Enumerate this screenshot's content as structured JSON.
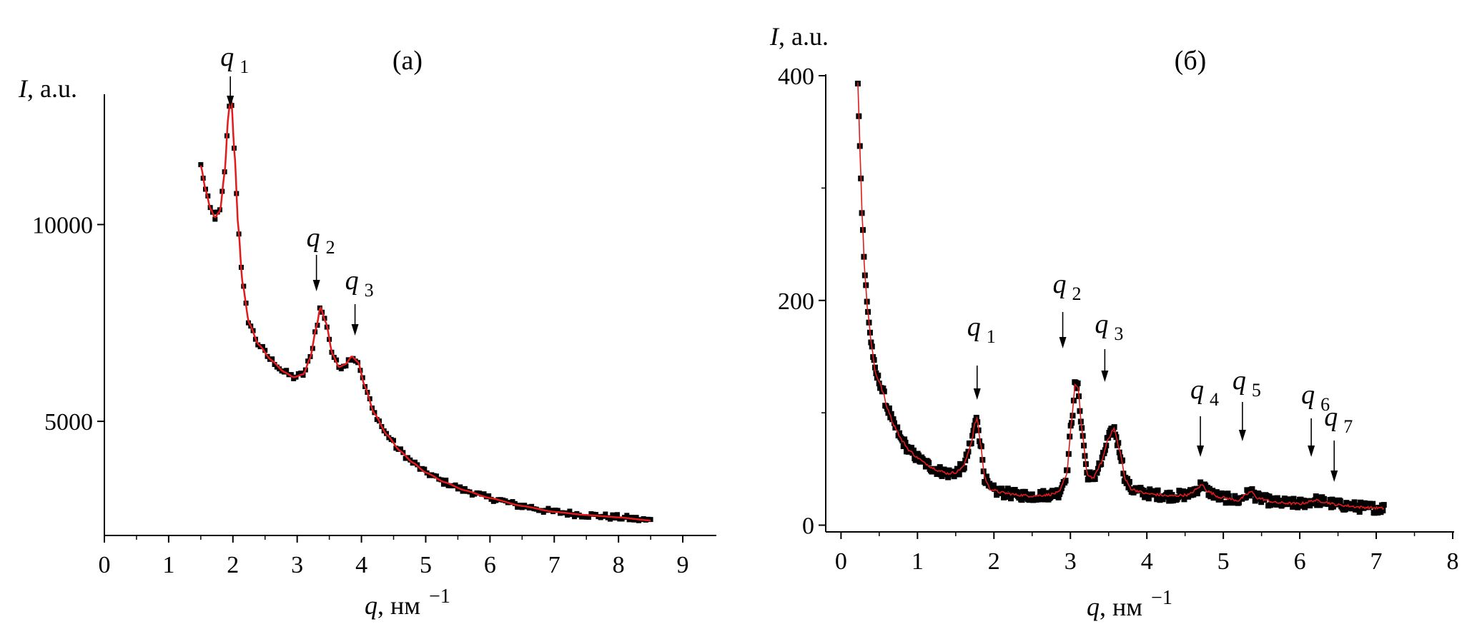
{
  "colors": {
    "fit_line": "#e31a1c",
    "points": "#000000",
    "axes": "#000000"
  },
  "chart_data": [
    {
      "type": "scatter",
      "panel_label": "(a)",
      "xlabel_var": "q",
      "xlabel_unit": ", нм",
      "xlabel_sup": "−1",
      "ylabel_var": "I",
      "ylabel_unit": ", a.u.",
      "xlim": [
        0,
        9.5
      ],
      "ylim": [
        2100,
        14000
      ],
      "xticks": [
        0,
        1,
        2,
        3,
        4,
        5,
        6,
        7,
        8,
        9
      ],
      "yticks": [
        5000,
        10000
      ],
      "grid": false,
      "legend": "none",
      "series": [
        {
          "kind": "points+fit",
          "anchors": [
            [
              1.5,
              11500
            ],
            [
              1.58,
              10850
            ],
            [
              1.65,
              10400
            ],
            [
              1.72,
              10180
            ],
            [
              1.8,
              10350
            ],
            [
              1.87,
              11300
            ],
            [
              1.93,
              12800
            ],
            [
              1.97,
              13300
            ],
            [
              2.03,
              11700
            ],
            [
              2.08,
              10000
            ],
            [
              2.15,
              8500
            ],
            [
              2.25,
              7500
            ],
            [
              2.4,
              6950
            ],
            [
              2.6,
              6550
            ],
            [
              2.8,
              6250
            ],
            [
              2.95,
              6120
            ],
            [
              3.1,
              6200
            ],
            [
              3.2,
              6600
            ],
            [
              3.3,
              7400
            ],
            [
              3.36,
              7900
            ],
            [
              3.45,
              7500
            ],
            [
              3.55,
              6700
            ],
            [
              3.65,
              6380
            ],
            [
              3.75,
              6450
            ],
            [
              3.85,
              6650
            ],
            [
              3.95,
              6500
            ],
            [
              4.05,
              5900
            ],
            [
              4.2,
              5200
            ],
            [
              4.4,
              4650
            ],
            [
              4.6,
              4250
            ],
            [
              4.8,
              3950
            ],
            [
              5.0,
              3700
            ],
            [
              5.3,
              3450
            ],
            [
              5.6,
              3250
            ],
            [
              6.0,
              3050
            ],
            [
              6.5,
              2850
            ],
            [
              7.0,
              2700
            ],
            [
              7.5,
              2620
            ],
            [
              8.0,
              2560
            ],
            [
              8.5,
              2480
            ]
          ]
        }
      ],
      "annotations": [
        {
          "base": "q",
          "sub": "1",
          "x": 1.96
        },
        {
          "base": "q",
          "sub": "2",
          "x": 3.3
        },
        {
          "base": "q",
          "sub": "3",
          "x": 3.9
        }
      ]
    },
    {
      "type": "scatter",
      "panel_label": "(б)",
      "xlabel_var": "q",
      "xlabel_unit": ", нм",
      "xlabel_sup": "−1",
      "ylabel_var": "I",
      "ylabel_unit": ", a.u.",
      "xlim": [
        -0.2,
        8
      ],
      "ylim": [
        -6,
        400
      ],
      "xticks": [
        0,
        1,
        2,
        3,
        4,
        5,
        6,
        7,
        8
      ],
      "yticks": [
        0,
        200,
        400
      ],
      "grid": false,
      "legend": "none",
      "series": [
        {
          "kind": "points+fit",
          "anchors": [
            [
              0.22,
              395
            ],
            [
              0.25,
              330
            ],
            [
              0.28,
              270
            ],
            [
              0.31,
              225
            ],
            [
              0.35,
              190
            ],
            [
              0.4,
              160
            ],
            [
              0.45,
              135
            ],
            [
              0.5,
              128
            ],
            [
              0.55,
              118
            ],
            [
              0.6,
              105
            ],
            [
              0.7,
              88
            ],
            [
              0.8,
              75
            ],
            [
              0.9,
              66
            ],
            [
              1.0,
              60
            ],
            [
              1.1,
              55
            ],
            [
              1.2,
              51
            ],
            [
              1.3,
              48
            ],
            [
              1.4,
              46
            ],
            [
              1.5,
              47
            ],
            [
              1.6,
              52
            ],
            [
              1.7,
              72
            ],
            [
              1.75,
              90
            ],
            [
              1.78,
              95
            ],
            [
              1.82,
              75
            ],
            [
              1.88,
              42
            ],
            [
              1.95,
              32
            ],
            [
              2.1,
              29
            ],
            [
              2.3,
              27
            ],
            [
              2.5,
              26
            ],
            [
              2.7,
              27
            ],
            [
              2.85,
              29
            ],
            [
              2.95,
              45
            ],
            [
              3.02,
              95
            ],
            [
              3.06,
              125
            ],
            [
              3.1,
              122
            ],
            [
              3.15,
              85
            ],
            [
              3.22,
              45
            ],
            [
              3.3,
              42
            ],
            [
              3.4,
              55
            ],
            [
              3.5,
              78
            ],
            [
              3.57,
              86
            ],
            [
              3.65,
              65
            ],
            [
              3.72,
              40
            ],
            [
              3.8,
              32
            ],
            [
              4.0,
              28
            ],
            [
              4.3,
              26
            ],
            [
              4.55,
              27
            ],
            [
              4.65,
              32
            ],
            [
              4.72,
              36
            ],
            [
              4.8,
              30
            ],
            [
              4.95,
              25
            ],
            [
              5.2,
              22
            ],
            [
              5.3,
              27
            ],
            [
              5.36,
              30
            ],
            [
              5.45,
              24
            ],
            [
              5.7,
              20
            ],
            [
              6.0,
              19
            ],
            [
              6.2,
              22
            ],
            [
              6.3,
              21
            ],
            [
              6.5,
              18
            ],
            [
              6.8,
              16
            ],
            [
              7.1,
              15
            ]
          ]
        }
      ],
      "annotations": [
        {
          "base": "q",
          "sub": "1",
          "x": 1.78
        },
        {
          "base": "q",
          "sub": "2",
          "x": 2.9
        },
        {
          "base": "q",
          "sub": "3",
          "x": 3.45
        },
        {
          "base": "q",
          "sub": "4",
          "x": 4.7
        },
        {
          "base": "q",
          "sub": "5",
          "x": 5.25
        },
        {
          "base": "q",
          "sub": "6",
          "x": 6.15
        },
        {
          "base": "q",
          "sub": "7",
          "x": 6.45
        }
      ]
    }
  ]
}
